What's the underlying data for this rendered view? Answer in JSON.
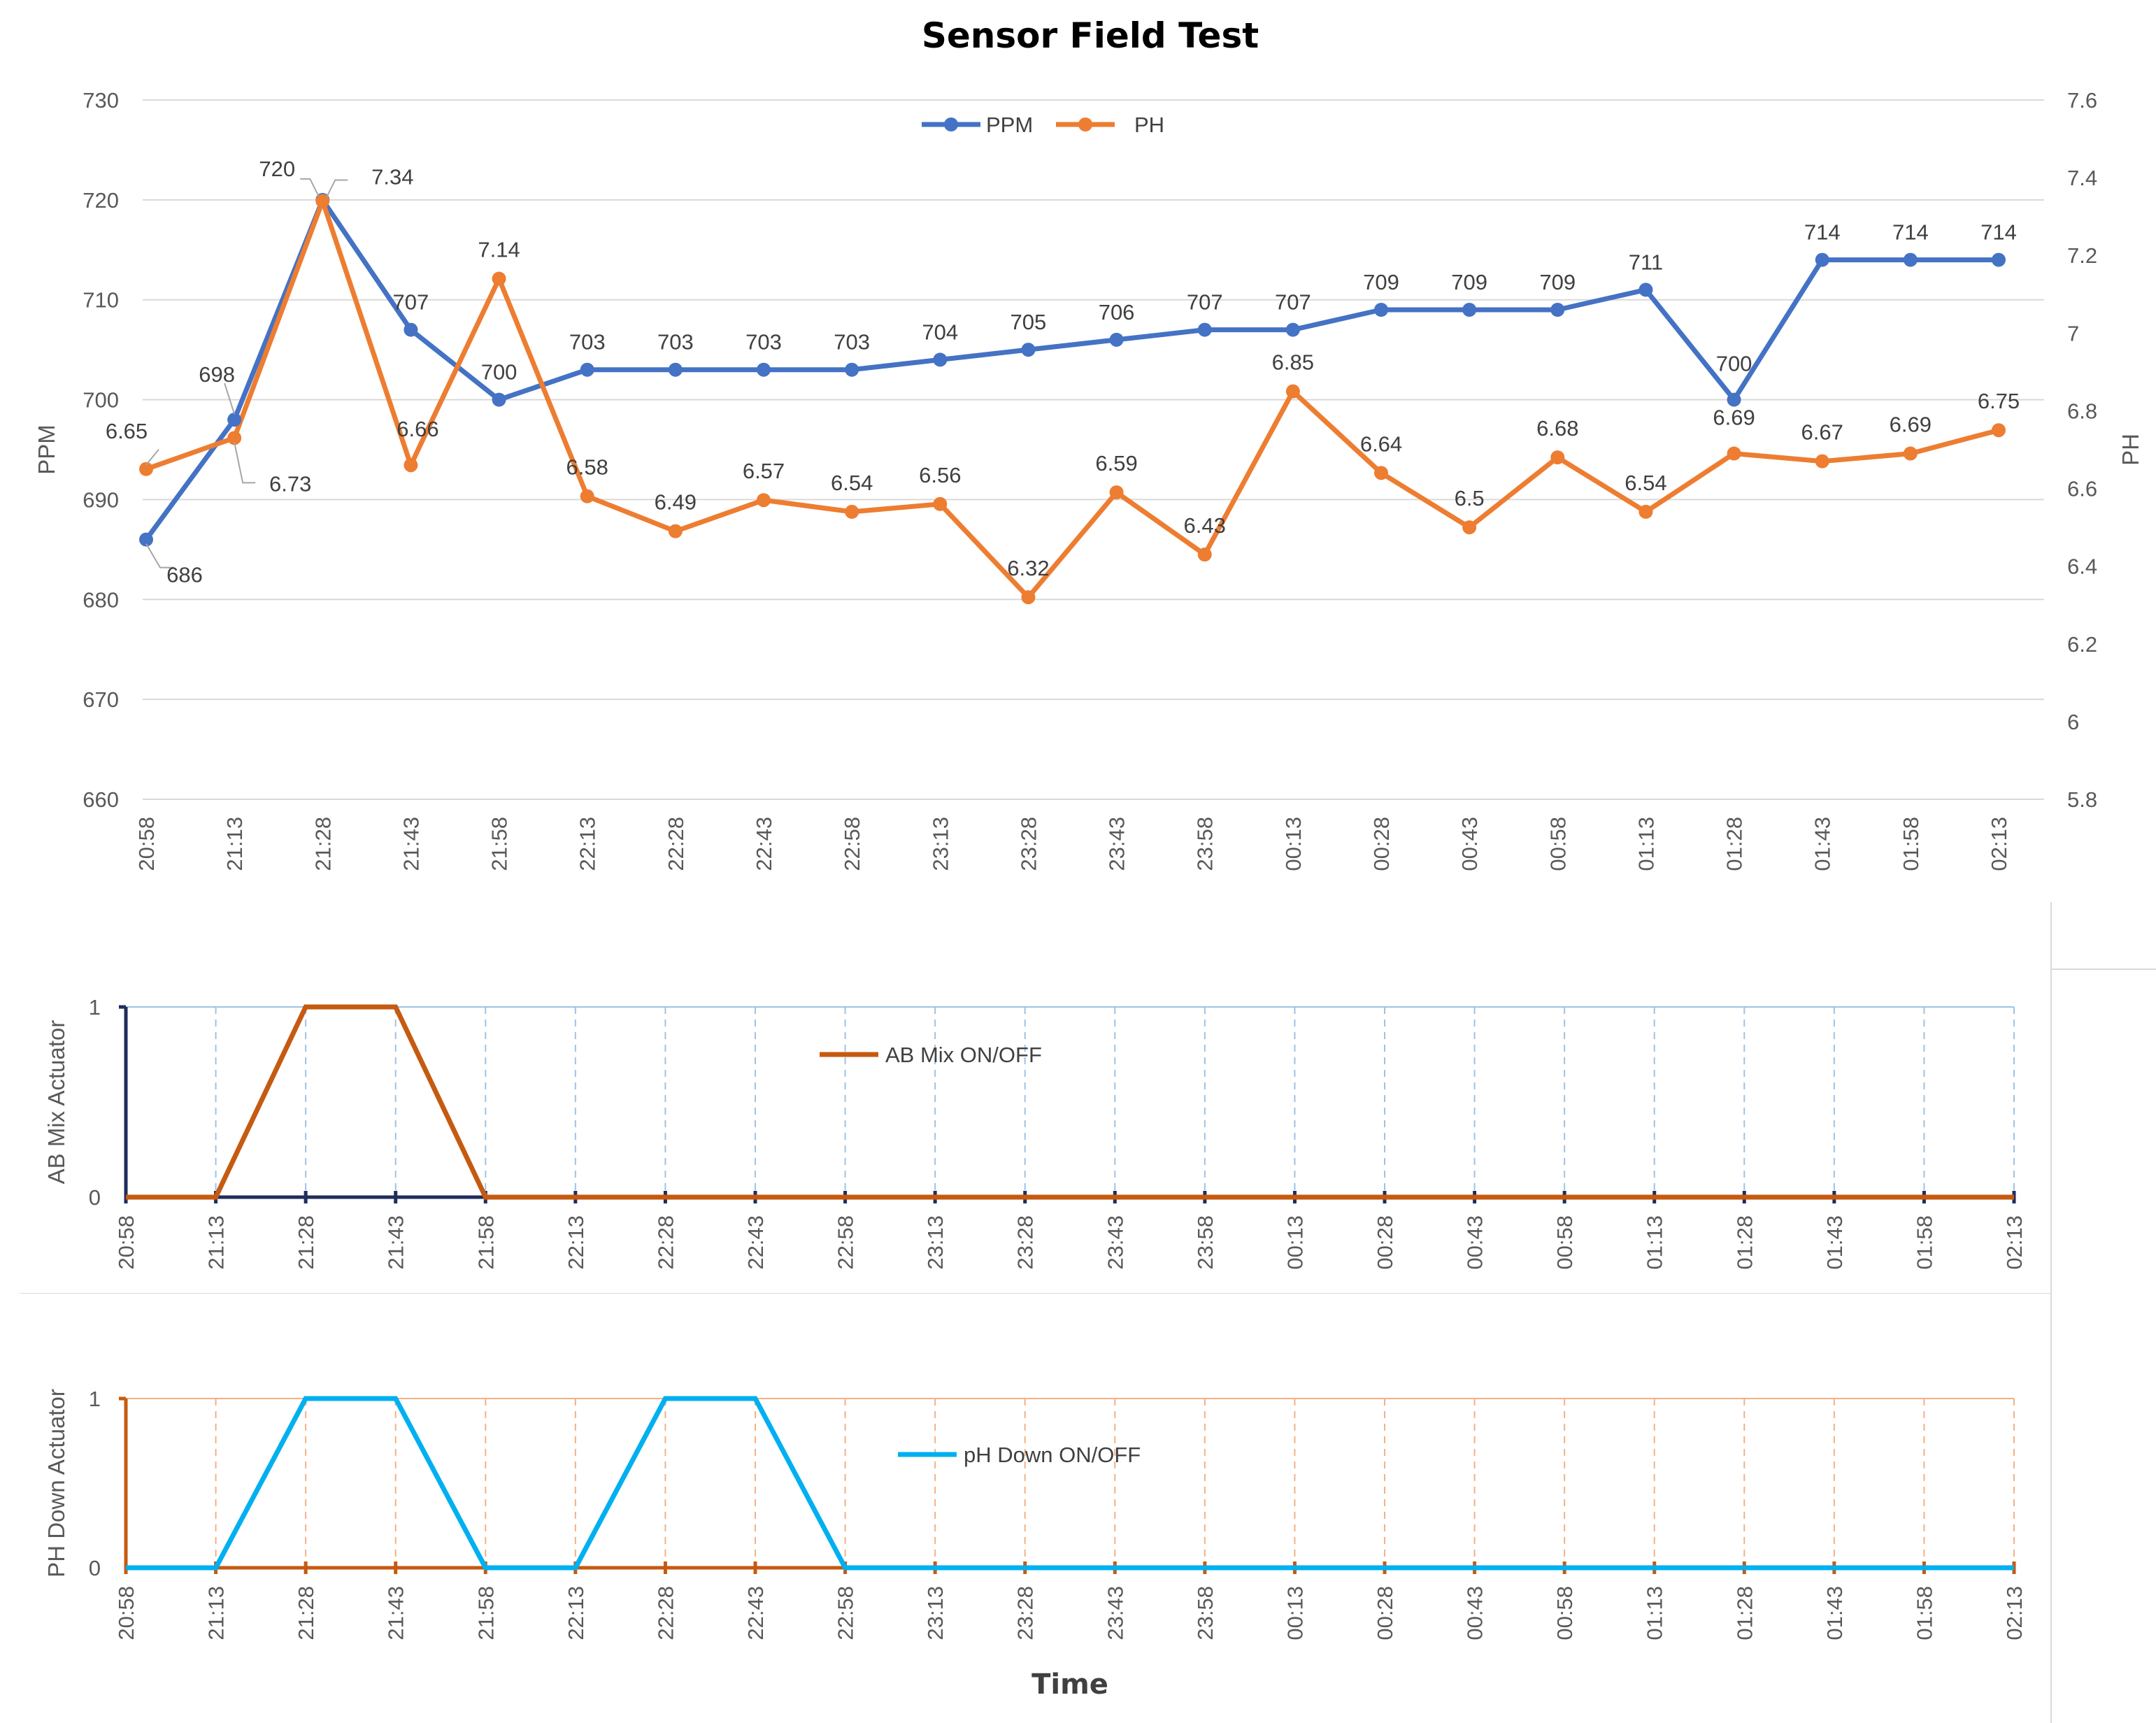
{
  "chart_data": [
    {
      "id": "main",
      "type": "line",
      "title": "Sensor Field Test",
      "xlabel": "",
      "ylabel": "PPM",
      "y2label": "PH",
      "ylim": [
        660,
        730
      ],
      "y2lim": [
        5.8,
        7.6
      ],
      "yticks": [
        "660",
        "670",
        "680",
        "690",
        "700",
        "710",
        "720",
        "730"
      ],
      "y2ticks": [
        "5.8",
        "6",
        "6.2",
        "6.4",
        "6.6",
        "6.8",
        "7",
        "7.2",
        "7.4",
        "7.6"
      ],
      "categories": [
        "20:58",
        "21:13",
        "21:28",
        "21:43",
        "21:58",
        "22:13",
        "22:28",
        "22:43",
        "22:58",
        "23:13",
        "23:28",
        "23:43",
        "23:58",
        "00:13",
        "00:28",
        "00:43",
        "00:58",
        "01:13",
        "01:28",
        "01:43",
        "01:58",
        "02:13"
      ],
      "legend_position": "top-center",
      "series": [
        {
          "name": "PPM",
          "axis": "left",
          "color": "#4472C4",
          "values": [
            686,
            698,
            720,
            707,
            700,
            703,
            703,
            703,
            703,
            704,
            705,
            706,
            707,
            707,
            709,
            709,
            709,
            711,
            700,
            714,
            714,
            714
          ],
          "labels": [
            "686",
            "698",
            "720",
            "707",
            "700",
            "703",
            "703",
            "703",
            "703",
            "704",
            "705",
            "706",
            "707",
            "707",
            "709",
            "709",
            "709",
            "711",
            "700",
            "714",
            "714",
            "714"
          ]
        },
        {
          "name": "PH",
          "axis": "right",
          "color": "#ED7D31",
          "values": [
            6.65,
            6.73,
            7.34,
            6.66,
            7.14,
            6.58,
            6.49,
            6.57,
            6.54,
            6.56,
            6.32,
            6.59,
            6.43,
            6.85,
            6.64,
            6.5,
            6.68,
            6.54,
            6.69,
            6.67,
            6.69,
            6.75
          ],
          "labels": [
            "6.65",
            "6.73",
            "7.34",
            "6.66",
            "7.14",
            "6.58",
            "6.49",
            "6.57",
            "6.54",
            "6.56",
            "6.32",
            "6.59",
            "6.43",
            "6.85",
            "6.64",
            "6.5",
            "6.68",
            "6.54",
            "6.69",
            "6.67",
            "6.69",
            "6.75"
          ]
        }
      ]
    },
    {
      "id": "ab",
      "type": "line",
      "title": "",
      "xlabel": "",
      "ylabel": "AB Mix Actuator",
      "ylim": [
        0,
        1
      ],
      "yticks": [
        "0",
        "1"
      ],
      "categories": [
        "20:58",
        "21:13",
        "21:28",
        "21:43",
        "21:58",
        "22:13",
        "22:28",
        "22:43",
        "22:58",
        "23:13",
        "23:28",
        "23:43",
        "23:58",
        "00:13",
        "00:28",
        "00:43",
        "00:58",
        "01:13",
        "01:28",
        "01:43",
        "01:58",
        "02:13"
      ],
      "legend_position": "top-center",
      "grid": true,
      "series": [
        {
          "name": "AB Mix ON/OFF",
          "color": "#C55A11",
          "values": [
            0,
            0,
            1,
            1,
            0,
            0,
            0,
            0,
            0,
            0,
            0,
            0,
            0,
            0,
            0,
            0,
            0,
            0,
            0,
            0,
            0,
            0
          ]
        }
      ],
      "axis_color": "#1F2D5A",
      "grid_color": "#9DC3E6"
    },
    {
      "id": "ph",
      "type": "line",
      "title": "",
      "xlabel": "Time",
      "ylabel": "PH Down Actuator",
      "ylim": [
        0,
        1
      ],
      "yticks": [
        "0",
        "1"
      ],
      "categories": [
        "20:58",
        "21:13",
        "21:28",
        "21:43",
        "21:58",
        "22:13",
        "22:28",
        "22:43",
        "22:58",
        "23:13",
        "23:28",
        "23:43",
        "23:58",
        "00:13",
        "00:28",
        "00:43",
        "00:58",
        "01:13",
        "01:28",
        "01:43",
        "01:58",
        "02:13"
      ],
      "legend_position": "top-center",
      "grid": true,
      "series": [
        {
          "name": "pH Down ON/OFF",
          "color": "#00B0F0",
          "values": [
            0,
            0,
            1,
            1,
            0,
            0,
            1,
            1,
            0,
            0,
            0,
            0,
            0,
            0,
            0,
            0,
            0,
            0,
            0,
            0,
            0,
            0
          ]
        }
      ],
      "axis_color": "#C55A11",
      "grid_color": "#F4B183"
    }
  ]
}
